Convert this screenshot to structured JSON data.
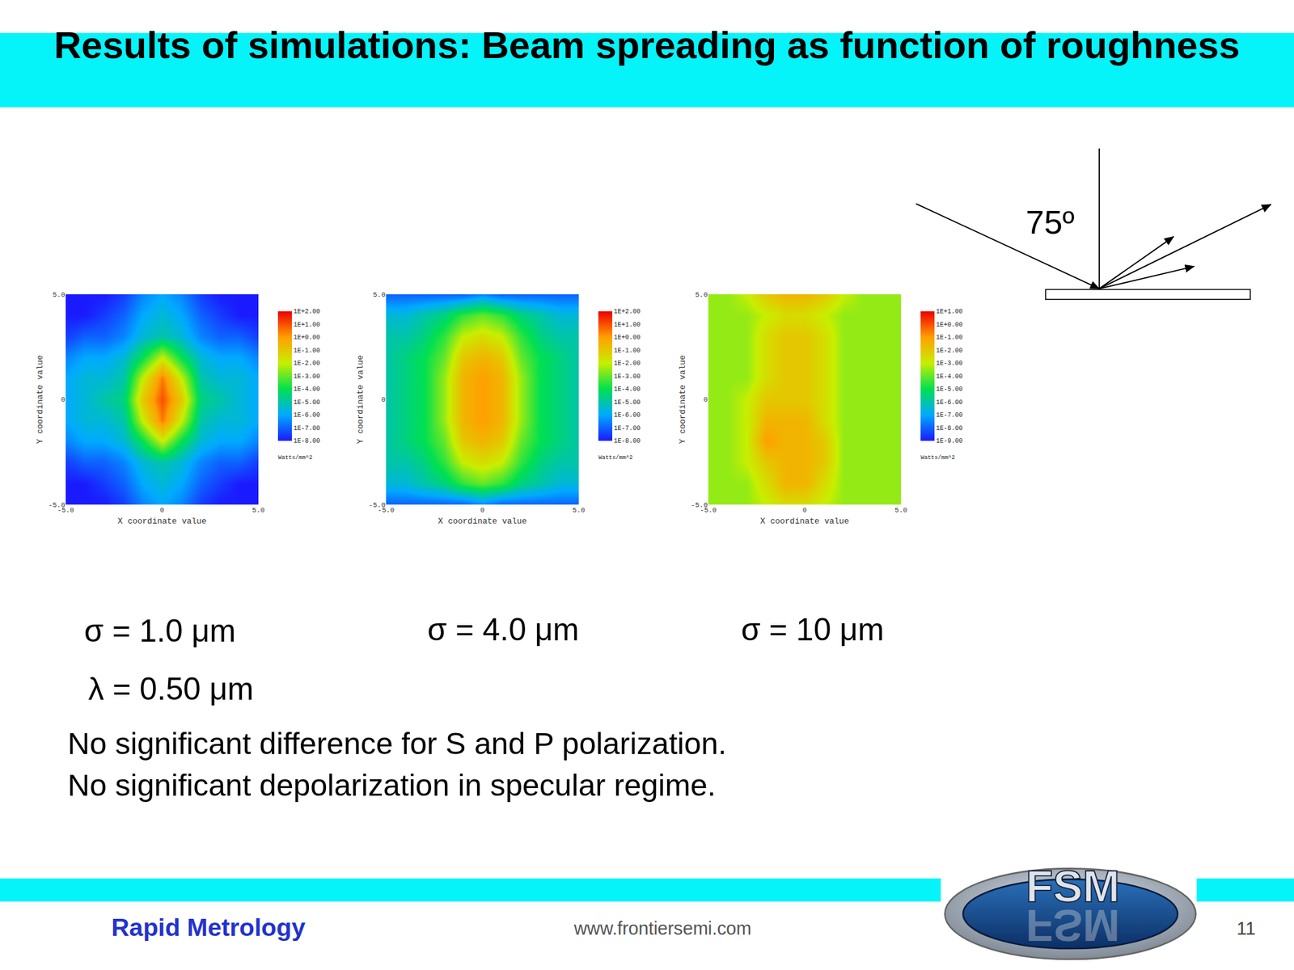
{
  "title": "Results of simulations: Beam spreading as function of roughness",
  "diagram": {
    "angle_label": "75º"
  },
  "chart_data": [
    {
      "type": "heatmap",
      "caption": "σ = 1.0 μm",
      "log": true,
      "grid": false,
      "x_label": "X coordinate value",
      "y_label": "Y coordinate value",
      "x": [
        -5,
        -4,
        -3,
        -2,
        -1,
        0,
        1,
        2,
        3,
        4,
        5
      ],
      "y": [
        -5,
        -4,
        -3,
        -2,
        -1,
        0,
        1,
        2,
        3,
        4,
        5
      ],
      "xlim": [
        -5,
        5
      ],
      "ylim": [
        -5,
        5
      ],
      "xticks": [
        {
          "value": -5,
          "label": "-5.0"
        },
        0,
        {
          "value": 5,
          "label": "5.0"
        }
      ],
      "yticks": [
        {
          "value": -5,
          "label": "-5.0"
        },
        0,
        {
          "value": 5,
          "label": "5.0"
        }
      ],
      "cells": [
        [
          1e-08,
          1e-08,
          1e-08,
          3e-08,
          3e-07,
          1e-06,
          3e-07,
          3e-08,
          1e-08,
          1e-08,
          1e-08
        ],
        [
          1e-08,
          1e-08,
          3e-08,
          1e-07,
          1e-06,
          3e-06,
          1e-06,
          1e-07,
          3e-08,
          1e-08,
          1e-08
        ],
        [
          3e-08,
          1e-07,
          1e-07,
          3e-07,
          3e-06,
          1e-05,
          3e-06,
          3e-07,
          1e-07,
          1e-07,
          3e-08
        ],
        [
          3e-07,
          1e-06,
          1e-06,
          3e-06,
          0.0001,
          0.01,
          0.0001,
          3e-06,
          1e-06,
          1e-06,
          3e-07
        ],
        [
          1e-06,
          3e-06,
          3e-06,
          1e-05,
          0.01,
          3,
          0.01,
          1e-05,
          3e-06,
          3e-06,
          1e-06
        ],
        [
          1e-06,
          3e-06,
          1e-05,
          3e-05,
          0.1,
          10,
          0.1,
          3e-05,
          1e-05,
          3e-06,
          1e-06
        ],
        [
          1e-06,
          3e-06,
          3e-06,
          1e-05,
          0.01,
          3,
          0.01,
          1e-05,
          3e-06,
          3e-06,
          1e-06
        ],
        [
          3e-07,
          1e-06,
          1e-06,
          3e-06,
          0.0001,
          0.01,
          0.0001,
          3e-06,
          1e-06,
          1e-06,
          3e-07
        ],
        [
          3e-08,
          1e-07,
          1e-07,
          3e-07,
          3e-06,
          1e-05,
          3e-06,
          3e-07,
          1e-07,
          1e-07,
          3e-08
        ],
        [
          1e-08,
          1e-08,
          3e-08,
          1e-07,
          1e-06,
          3e-06,
          1e-06,
          1e-07,
          3e-08,
          1e-08,
          1e-08
        ],
        [
          1e-08,
          1e-08,
          1e-08,
          3e-08,
          3e-07,
          1e-06,
          3e-07,
          3e-08,
          1e-08,
          1e-08,
          1e-08
        ]
      ],
      "colorbar": {
        "range": [
          1e-08,
          100
        ],
        "title": "Watts/mm^2",
        "ticks": [
          {
            "value": 100,
            "label": "1E+2.00"
          },
          {
            "value": 10,
            "label": "1E+1.00"
          },
          {
            "value": 1,
            "label": "1E+0.00"
          },
          {
            "value": 0.1,
            "label": "1E-1.00"
          },
          {
            "value": 0.01,
            "label": "1E-2.00"
          },
          {
            "value": 0.001,
            "label": "1E-3.00"
          },
          {
            "value": 0.0001,
            "label": "1E-4.00"
          },
          {
            "value": 1e-05,
            "label": "1E-5.00"
          },
          {
            "value": 1e-06,
            "label": "1E-6.00"
          },
          {
            "value": 1e-07,
            "label": "1E-7.00"
          },
          {
            "value": 1e-08,
            "label": "1E-8.00"
          }
        ]
      }
    },
    {
      "type": "heatmap",
      "caption": "σ = 4.0 μm",
      "log": true,
      "grid": false,
      "x_label": "X coordinate value",
      "y_label": "Y coordinate value",
      "x": [
        -5,
        -4,
        -3,
        -2,
        -1,
        0,
        1,
        2,
        3,
        4,
        5
      ],
      "y": [
        -5,
        -4,
        -3,
        -2,
        -1,
        0,
        1,
        2,
        3,
        4,
        5
      ],
      "xlim": [
        -5,
        5
      ],
      "ylim": [
        -5,
        5
      ],
      "xticks": [
        {
          "value": -5,
          "label": "-5.0"
        },
        0,
        {
          "value": 5,
          "label": "5.0"
        }
      ],
      "yticks": [
        {
          "value": -5,
          "label": "-5.0"
        },
        0,
        {
          "value": 5,
          "label": "5.0"
        }
      ],
      "cells": [
        [
          1e-07,
          1e-07,
          1e-07,
          1e-07,
          1e-07,
          3e-07,
          1e-07,
          1e-07,
          1e-07,
          1e-07,
          1e-07
        ],
        [
          3e-06,
          3e-06,
          1e-05,
          3e-05,
          0.0003,
          0.001,
          0.0003,
          3e-05,
          1e-05,
          3e-06,
          3e-06
        ],
        [
          1e-05,
          1e-05,
          3e-05,
          0.0003,
          0.01,
          0.03,
          0.01,
          0.0003,
          3e-05,
          1e-05,
          1e-05
        ],
        [
          1e-05,
          3e-05,
          0.0001,
          0.001,
          0.1,
          0.3,
          0.1,
          0.001,
          0.0001,
          3e-05,
          1e-05
        ],
        [
          1e-05,
          3e-05,
          0.0001,
          0.003,
          0.3,
          1,
          0.3,
          0.003,
          0.0001,
          3e-05,
          1e-05
        ],
        [
          1e-05,
          3e-05,
          0.0001,
          0.003,
          0.3,
          1,
          0.3,
          0.003,
          0.0001,
          3e-05,
          1e-05
        ],
        [
          1e-05,
          3e-05,
          0.0001,
          0.003,
          0.3,
          1,
          0.3,
          0.003,
          0.0001,
          3e-05,
          1e-05
        ],
        [
          1e-05,
          3e-05,
          0.0001,
          0.001,
          0.1,
          0.3,
          0.1,
          0.001,
          0.0001,
          3e-05,
          1e-05
        ],
        [
          1e-05,
          1e-05,
          3e-05,
          0.0003,
          0.01,
          0.03,
          0.01,
          0.0003,
          3e-05,
          1e-05,
          1e-05
        ],
        [
          3e-06,
          3e-06,
          1e-05,
          3e-05,
          0.0003,
          0.001,
          0.0003,
          3e-05,
          1e-05,
          3e-06,
          3e-06
        ],
        [
          1e-07,
          1e-07,
          1e-07,
          1e-07,
          1e-07,
          3e-07,
          1e-07,
          1e-07,
          1e-07,
          1e-07,
          1e-07
        ]
      ],
      "colorbar": {
        "range": [
          1e-08,
          100
        ],
        "title": "Watts/mm^2",
        "ticks": [
          {
            "value": 100,
            "label": "1E+2.00"
          },
          {
            "value": 10,
            "label": "1E+1.00"
          },
          {
            "value": 1,
            "label": "1E+0.00"
          },
          {
            "value": 0.1,
            "label": "1E-1.00"
          },
          {
            "value": 0.01,
            "label": "1E-2.00"
          },
          {
            "value": 0.001,
            "label": "1E-3.00"
          },
          {
            "value": 0.0001,
            "label": "1E-4.00"
          },
          {
            "value": 1e-05,
            "label": "1E-5.00"
          },
          {
            "value": 1e-06,
            "label": "1E-6.00"
          },
          {
            "value": 1e-07,
            "label": "1E-7.00"
          },
          {
            "value": 1e-08,
            "label": "1E-8.00"
          }
        ]
      }
    },
    {
      "type": "heatmap",
      "caption": "σ = 10 μm",
      "log": true,
      "grid": false,
      "x_label": "X coordinate value",
      "y_label": "Y coordinate value",
      "x": [
        -5,
        -4,
        -3,
        -2,
        -1,
        0,
        1,
        2,
        3,
        4,
        5
      ],
      "y": [
        -5,
        -4,
        -3,
        -2,
        -1,
        0,
        1,
        2,
        3,
        4,
        5
      ],
      "xlim": [
        -5,
        5
      ],
      "ylim": [
        -5,
        5
      ],
      "xticks": [
        {
          "value": -5,
          "label": "-5.0"
        },
        0,
        {
          "value": 5,
          "label": "5.0"
        }
      ],
      "yticks": [
        {
          "value": -5,
          "label": "-5.0"
        },
        0,
        {
          "value": 5,
          "label": "5.0"
        }
      ],
      "cells": [
        [
          0.0003,
          0.0003,
          0.0003,
          0.001,
          0.003,
          0.003,
          0.001,
          0.0003,
          0.0003,
          0.0003,
          0.0003
        ],
        [
          0.0003,
          0.0003,
          0.0003,
          0.003,
          0.03,
          0.03,
          0.003,
          0.0003,
          0.0003,
          0.0003,
          0.0003
        ],
        [
          0.0003,
          0.0003,
          0.001,
          0.01,
          0.03,
          0.03,
          0.01,
          0.0003,
          0.0003,
          0.0003,
          0.0003
        ],
        [
          0.0003,
          0.0003,
          0.001,
          0.1,
          0.03,
          0.03,
          0.01,
          0.0003,
          0.0003,
          0.0003,
          0.0003
        ],
        [
          0.0003,
          0.0003,
          0.001,
          0.03,
          0.03,
          0.03,
          0.003,
          0.0003,
          0.0003,
          0.0003,
          0.0003
        ],
        [
          0.0003,
          0.0003,
          0.001,
          0.01,
          0.01,
          0.01,
          0.003,
          0.0003,
          0.0003,
          0.0003,
          0.0003
        ],
        [
          0.0003,
          0.0003,
          0.0003,
          0.003,
          0.01,
          0.01,
          0.003,
          0.0003,
          0.0003,
          0.0003,
          0.0003
        ],
        [
          0.0003,
          0.0003,
          0.0003,
          0.003,
          0.01,
          0.01,
          0.003,
          0.0003,
          0.0003,
          0.0003,
          0.0003
        ],
        [
          0.0003,
          0.0003,
          0.0003,
          0.003,
          0.01,
          0.01,
          0.003,
          0.0003,
          0.0003,
          0.0003,
          0.0003
        ],
        [
          0.0003,
          0.0003,
          0.0003,
          0.001,
          0.003,
          0.003,
          0.001,
          0.0003,
          0.0003,
          0.0003,
          0.0003
        ],
        [
          0.0003,
          0.0003,
          0.001,
          0.01,
          0.03,
          0.03,
          0.01,
          0.001,
          0.0003,
          0.0003,
          0.0003
        ]
      ],
      "colorbar": {
        "range": [
          1e-09,
          10
        ],
        "title": "Watts/mm^2",
        "ticks": [
          {
            "value": 10,
            "label": "1E+1.00"
          },
          {
            "value": 1,
            "label": "1E+0.00"
          },
          {
            "value": 0.1,
            "label": "1E-1.00"
          },
          {
            "value": 0.01,
            "label": "1E-2.00"
          },
          {
            "value": 0.001,
            "label": "1E-3.00"
          },
          {
            "value": 0.0001,
            "label": "1E-4.00"
          },
          {
            "value": 1e-05,
            "label": "1E-5.00"
          },
          {
            "value": 1e-06,
            "label": "1E-6.00"
          },
          {
            "value": 1e-07,
            "label": "1E-7.00"
          },
          {
            "value": 1e-08,
            "label": "1E-8.00"
          },
          {
            "value": 1e-09,
            "label": "1E-9.00"
          }
        ]
      }
    }
  ],
  "wavelength": "λ = 0.50 μm",
  "notes": [
    "No significant difference for S and P polarization.",
    "No significant depolarization in specular regime."
  ],
  "footer": {
    "tagline": "Rapid Metrology",
    "url": "www.frontiersemi.com",
    "page": "11",
    "logo": "FSM"
  }
}
